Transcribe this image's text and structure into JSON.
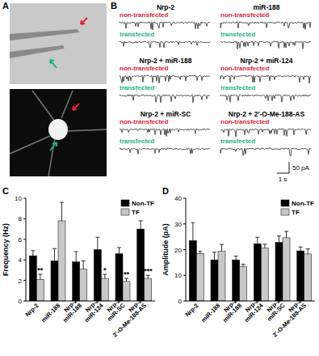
{
  "panel_labels": [
    "A",
    "B",
    "C",
    "D"
  ],
  "traces": {
    "titles": [
      "Nrp-2",
      "miR-188",
      "Nrp-2 + miR-188",
      "Nrp-2 + miR-124",
      "Nrp-2 + miR-SC",
      "Nrp-2 + 2'-O-Me-188-AS"
    ],
    "non_transfected": "non-transfected",
    "transfected": "transfected",
    "scale_y": "50 pA",
    "scale_x": "1 s"
  },
  "chart_data": [
    {
      "type": "bar",
      "ylabel": "Frequency (Hz)",
      "categories": [
        "Nrp-2",
        "miR-188",
        "Nrp-2\nmiR-188",
        "Nrp-2\nmiR-124",
        "Nrp-2\nmiR-SC",
        "Nrp-2\n2'-O-Me-188-AS"
      ],
      "series": [
        {
          "name": "Non-TF",
          "color": "#000000",
          "values": [
            4.4,
            3.9,
            3.8,
            5.0,
            4.6,
            7.0
          ],
          "errors": [
            0.5,
            1.2,
            1.0,
            1.2,
            0.6,
            0.8
          ]
        },
        {
          "name": "TF",
          "color": "#c8c8c8",
          "values": [
            2.1,
            7.8,
            3.1,
            2.2,
            1.9,
            2.2
          ],
          "errors": [
            0.5,
            1.8,
            0.8,
            0.4,
            0.3,
            0.3
          ],
          "annotations": [
            "**",
            null,
            null,
            "*",
            "**",
            "***"
          ]
        }
      ],
      "ylim": [
        0,
        10
      ],
      "yticks": [
        0,
        2,
        4,
        6,
        8,
        10
      ],
      "legend": "top-right"
    },
    {
      "type": "bar",
      "ylabel": "Amplitude (pA)",
      "categories": [
        "Nrp-2",
        "miR-188",
        "Nrp-2\nmiR-188",
        "Nrp-2\nmiR-124",
        "Nrp-2\nmiR-SC",
        "Nrp-2\n2'-O-Me-188-AS"
      ],
      "series": [
        {
          "name": "Non-TF",
          "color": "#000000",
          "values": [
            23.5,
            16.0,
            16.0,
            22.3,
            22.8,
            19.5
          ],
          "errors": [
            7.0,
            3.0,
            1.5,
            2.5,
            2.5,
            1.5
          ]
        },
        {
          "name": "TF",
          "color": "#c8c8c8",
          "values": [
            18.5,
            19.3,
            13.5,
            20.6,
            24.6,
            18.3
          ],
          "errors": [
            0.8,
            2.7,
            0.8,
            1.5,
            2.5,
            2.0
          ]
        }
      ],
      "ylim": [
        0,
        40
      ],
      "yticks": [
        0,
        10,
        20,
        30,
        40
      ],
      "legend": "top-right"
    }
  ]
}
